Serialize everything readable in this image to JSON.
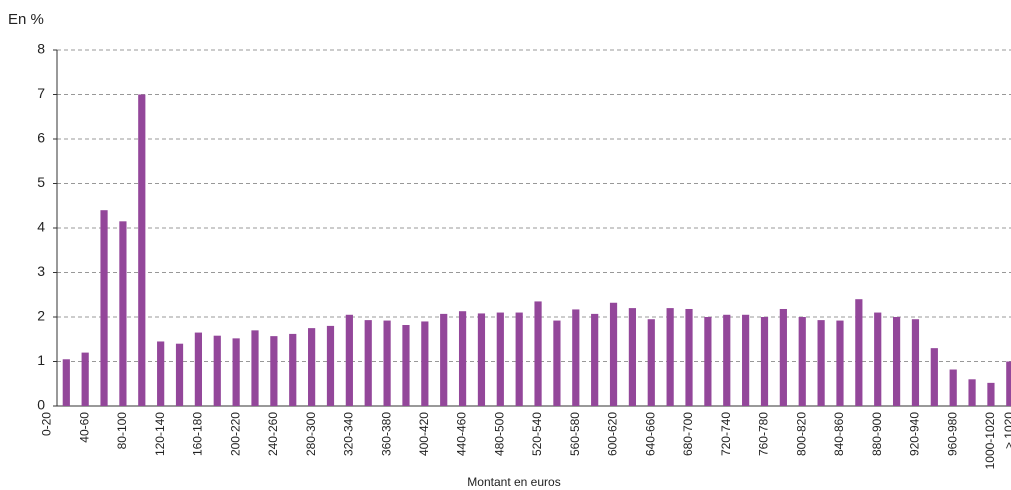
{
  "chart_data": {
    "type": "bar",
    "y_axis_label": "En %",
    "x_axis_label": "Montant en euros",
    "categories": [
      "0-20",
      null,
      "40-60",
      null,
      "80-100",
      null,
      "120-140",
      null,
      "160-180",
      null,
      "200-220",
      null,
      "240-260",
      null,
      "280-300",
      null,
      "320-340",
      null,
      "360-380",
      null,
      "400-420",
      null,
      "440-460",
      null,
      "480-500",
      null,
      "520-540",
      null,
      "560-580",
      null,
      "600-620",
      null,
      "640-660",
      null,
      "680-700",
      null,
      "720-740",
      null,
      "760-780",
      null,
      "800-820",
      null,
      "840-860",
      null,
      "880-900",
      null,
      "920-940",
      null,
      "960-980",
      null,
      "1000-1020",
      "> 1020"
    ],
    "values": [
      0,
      1.05,
      1.2,
      4.4,
      4.15,
      7.0,
      1.45,
      1.4,
      1.65,
      1.58,
      1.52,
      1.7,
      1.57,
      1.62,
      1.75,
      1.8,
      2.05,
      1.93,
      1.92,
      1.82,
      1.9,
      2.07,
      2.13,
      2.08,
      2.1,
      2.1,
      2.35,
      1.92,
      2.17,
      2.07,
      2.32,
      2.2,
      1.95,
      2.2,
      2.18,
      2.0,
      2.05,
      2.05,
      2.0,
      2.18,
      2.0,
      1.93,
      1.92,
      2.4,
      2.1,
      2.0,
      1.95,
      1.3,
      0.82,
      0.6,
      0.52,
      1.0
    ],
    "color": "#93479a",
    "ylim": [
      0,
      8
    ],
    "yticks": [
      0,
      1,
      2,
      3,
      4,
      5,
      6,
      7,
      8
    ],
    "grid": true
  }
}
